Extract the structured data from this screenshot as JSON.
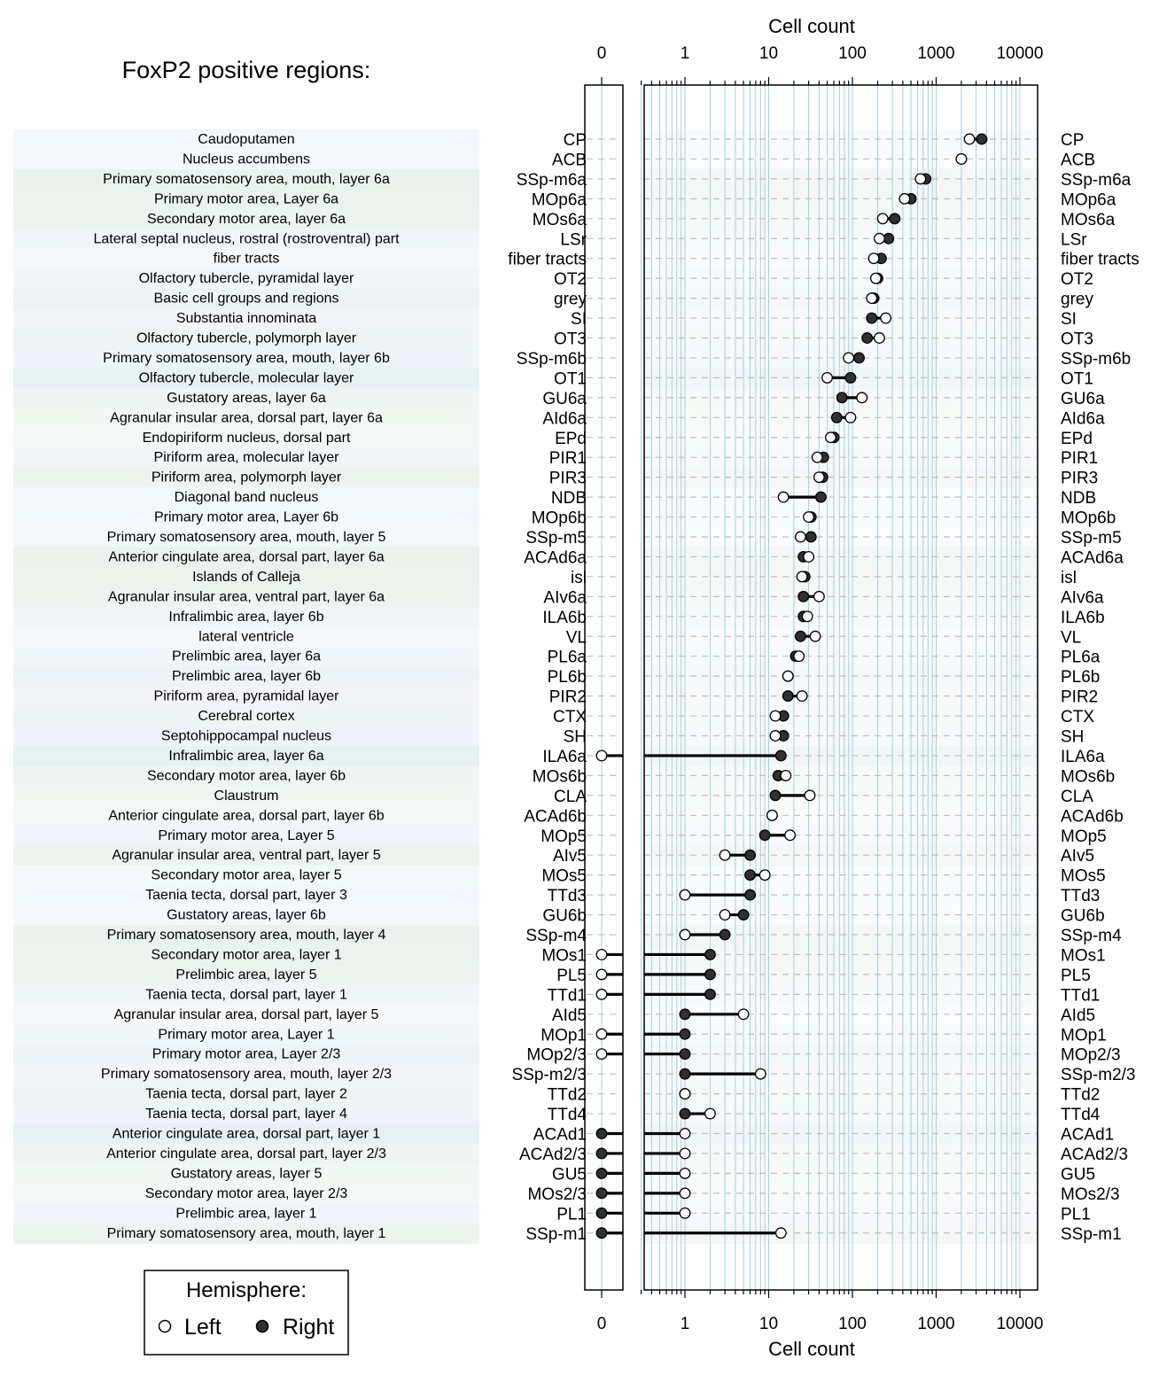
{
  "page_title": "FoxP2 positive regions:",
  "legend": {
    "title": "Hemisphere:",
    "left_label": "Left",
    "right_label": "Right"
  },
  "colors": {
    "band_colors": [
      "#f1f7fb",
      "#f4f8fb",
      "#eaf2ee",
      "#ebf3ef",
      "#edf4f0",
      "#f0f5f7",
      "#f5f7f9",
      "#f0f6fb",
      "#edf3f6",
      "#f3f4f7",
      "#eef5f4",
      "#eef4fb",
      "#e6f1f2",
      "#eef5f3",
      "#f1f7f3",
      "#f3f7f6",
      "#f1f4f9",
      "#edf3ee",
      "#f2f9f9"
    ],
    "grid_line": "#a8d0e0",
    "dash_line": "#c0c0c0",
    "right_point": "#303030",
    "left_point": "#ffffff",
    "segment": "#000000"
  },
  "chart_data": {
    "type": "dot-dumbbell",
    "xlabel": "Cell count",
    "x_scale": "log10 with separate zero panel",
    "xlim": [
      0.3,
      13000
    ],
    "x_ticks": [
      "0",
      "1",
      "10",
      "100",
      "1000",
      "10000"
    ],
    "x_tick_values": [
      0,
      1,
      10,
      100,
      1000,
      10000
    ],
    "grid": true,
    "series": [
      {
        "name": "Left",
        "key": "left"
      },
      {
        "name": "Right",
        "key": "right"
      }
    ],
    "regions": [
      {
        "name": "Caudoputamen",
        "abbr": "CP",
        "left": 2500,
        "right": 3500
      },
      {
        "name": "Nucleus accumbens",
        "abbr": "ACB",
        "left": 2000,
        "right": 2000
      },
      {
        "name": "Primary somatosensory area, mouth, layer 6a",
        "abbr": "SSp-m6a",
        "left": 650,
        "right": 750
      },
      {
        "name": "Primary motor area, Layer 6a",
        "abbr": "MOp6a",
        "left": 420,
        "right": 500
      },
      {
        "name": "Secondary motor area, layer 6a",
        "abbr": "MOs6a",
        "left": 230,
        "right": 320
      },
      {
        "name": "Lateral septal nucleus, rostral (rostroventral) part",
        "abbr": "LSr",
        "left": 210,
        "right": 270
      },
      {
        "name": "fiber tracts",
        "abbr": "fiber tracts",
        "left": 180,
        "right": 220
      },
      {
        "name": "Olfactory tubercle, pyramidal layer",
        "abbr": "OT2",
        "left": 190,
        "right": 200
      },
      {
        "name": "Basic cell groups and regions",
        "abbr": "grey",
        "left": 170,
        "right": 180
      },
      {
        "name": "Substantia innominata",
        "abbr": "SI",
        "left": 250,
        "right": 170
      },
      {
        "name": "Olfactory tubercle, polymorph layer",
        "abbr": "OT3",
        "left": 210,
        "right": 150
      },
      {
        "name": "Primary somatosensory area, mouth, layer 6b",
        "abbr": "SSp-m6b",
        "left": 90,
        "right": 120
      },
      {
        "name": "Olfactory tubercle, molecular layer",
        "abbr": "OT1",
        "left": 50,
        "right": 95
      },
      {
        "name": "Gustatory areas, layer 6a",
        "abbr": "GU6a",
        "left": 130,
        "right": 75
      },
      {
        "name": "Agranular insular area, dorsal part, layer 6a",
        "abbr": "AId6a",
        "left": 95,
        "right": 65
      },
      {
        "name": "Endopiriform nucleus, dorsal part",
        "abbr": "EPd",
        "left": 55,
        "right": 60
      },
      {
        "name": "Piriform area, molecular layer",
        "abbr": "PIR1",
        "left": 38,
        "right": 45
      },
      {
        "name": "Piriform area, polymorph layer",
        "abbr": "PIR3",
        "left": 40,
        "right": 44
      },
      {
        "name": "Diagonal band nucleus",
        "abbr": "NDB",
        "left": 15,
        "right": 42
      },
      {
        "name": "Primary motor area, Layer 6b",
        "abbr": "MOp6b",
        "left": 30,
        "right": 32
      },
      {
        "name": "Primary somatosensory area, mouth, layer 5",
        "abbr": "SSp-m5",
        "left": 24,
        "right": 32
      },
      {
        "name": "Anterior cingulate area, dorsal part, layer 6a",
        "abbr": "ACAd6a",
        "left": 30,
        "right": 26
      },
      {
        "name": "Islands of Calleja",
        "abbr": "isl",
        "left": 25,
        "right": 27
      },
      {
        "name": "Agranular insular area, ventral part, layer 6a",
        "abbr": "AIv6a",
        "left": 40,
        "right": 26
      },
      {
        "name": "Infralimbic area, layer 6b",
        "abbr": "ILA6b",
        "left": 29,
        "right": 26
      },
      {
        "name": "lateral ventricle",
        "abbr": "VL",
        "left": 36,
        "right": 24
      },
      {
        "name": "Prelimbic area, layer 6a",
        "abbr": "PL6a",
        "left": 23,
        "right": 21
      },
      {
        "name": "Prelimbic area, layer 6b",
        "abbr": "PL6b",
        "left": 17,
        "right": 17
      },
      {
        "name": "Piriform area, pyramidal layer",
        "abbr": "PIR2",
        "left": 25,
        "right": 17
      },
      {
        "name": "Cerebral cortex",
        "abbr": "CTX",
        "left": 12,
        "right": 15
      },
      {
        "name": "Septohippocampal nucleus",
        "abbr": "SH",
        "left": 12,
        "right": 15
      },
      {
        "name": "Infralimbic area, layer 6a",
        "abbr": "ILA6a",
        "left": 0,
        "right": 14
      },
      {
        "name": "Secondary motor area, layer 6b",
        "abbr": "MOs6b",
        "left": 16,
        "right": 13
      },
      {
        "name": "Claustrum",
        "abbr": "CLA",
        "left": 31,
        "right": 12
      },
      {
        "name": "Anterior cingulate area, dorsal part, layer 6b",
        "abbr": "ACAd6b",
        "left": 11,
        "right": 11
      },
      {
        "name": "Primary motor area, Layer 5",
        "abbr": "MOp5",
        "left": 18,
        "right": 9
      },
      {
        "name": "Agranular insular area, ventral part, layer 5",
        "abbr": "AIv5",
        "left": 3,
        "right": 6
      },
      {
        "name": "Secondary motor area, layer 5",
        "abbr": "MOs5",
        "left": 9,
        "right": 6
      },
      {
        "name": "Taenia tecta, dorsal part, layer 3",
        "abbr": "TTd3",
        "left": 1,
        "right": 6
      },
      {
        "name": "Gustatory areas, layer 6b",
        "abbr": "GU6b",
        "left": 3,
        "right": 5
      },
      {
        "name": "Primary somatosensory area, mouth, layer 4",
        "abbr": "SSp-m4",
        "left": 1,
        "right": 3
      },
      {
        "name": "Secondary motor area, layer 1",
        "abbr": "MOs1",
        "left": 0,
        "right": 2
      },
      {
        "name": "Prelimbic area, layer 5",
        "abbr": "PL5",
        "left": 0,
        "right": 2
      },
      {
        "name": "Taenia tecta, dorsal part, layer 1",
        "abbr": "TTd1",
        "left": 0,
        "right": 2
      },
      {
        "name": "Agranular insular area, dorsal part, layer 5",
        "abbr": "AId5",
        "left": 5,
        "right": 1
      },
      {
        "name": "Primary motor area, Layer 1",
        "abbr": "MOp1",
        "left": 0,
        "right": 1
      },
      {
        "name": "Primary motor area, Layer 2/3",
        "abbr": "MOp2/3",
        "left": 0,
        "right": 1
      },
      {
        "name": "Primary somatosensory area, mouth, layer 2/3",
        "abbr": "SSp-m2/3",
        "left": 8,
        "right": 1
      },
      {
        "name": "Taenia tecta, dorsal part, layer 2",
        "abbr": "TTd2",
        "left": 1,
        "right": 1
      },
      {
        "name": "Taenia tecta, dorsal part, layer 4",
        "abbr": "TTd4",
        "left": 2,
        "right": 1
      },
      {
        "name": "Anterior cingulate area, dorsal part, layer 1",
        "abbr": "ACAd1",
        "left": 1,
        "right": 0
      },
      {
        "name": "Anterior cingulate area, dorsal part, layer 2/3",
        "abbr": "ACAd2/3",
        "left": 1,
        "right": 0
      },
      {
        "name": "Gustatory areas, layer 5",
        "abbr": "GU5",
        "left": 1,
        "right": 0
      },
      {
        "name": "Secondary motor area, layer 2/3",
        "abbr": "MOs2/3",
        "left": 1,
        "right": 0
      },
      {
        "name": "Prelimbic area, layer 1",
        "abbr": "PL1",
        "left": 1,
        "right": 0
      },
      {
        "name": "Primary somatosensory area, mouth, layer 1",
        "abbr": "SSp-m1",
        "left": 14,
        "right": 0
      }
    ]
  }
}
